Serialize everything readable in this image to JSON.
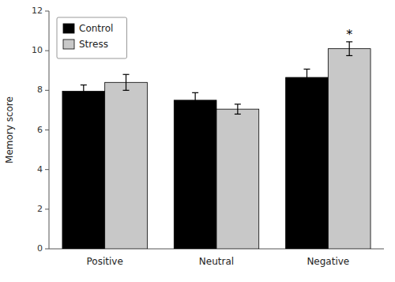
{
  "chart_data": {
    "type": "bar",
    "categories": [
      "Positive",
      "Neutral",
      "Negative"
    ],
    "series": [
      {
        "name": "Control",
        "color": "#000000",
        "values": [
          7.95,
          7.5,
          8.65
        ],
        "errors": [
          0.32,
          0.38,
          0.42
        ]
      },
      {
        "name": "Stress",
        "color": "#c8c8c8",
        "values": [
          8.4,
          7.05,
          10.1
        ],
        "errors": [
          0.4,
          0.25,
          0.35
        ]
      }
    ],
    "ylabel": "Memory score",
    "ylim": [
      0,
      12
    ],
    "yticks": [
      0,
      2,
      4,
      6,
      8,
      10,
      12
    ],
    "legend": "upper left",
    "grid": false,
    "annotations": [
      {
        "text": "*",
        "series": "Stress",
        "category": "Negative"
      }
    ]
  }
}
